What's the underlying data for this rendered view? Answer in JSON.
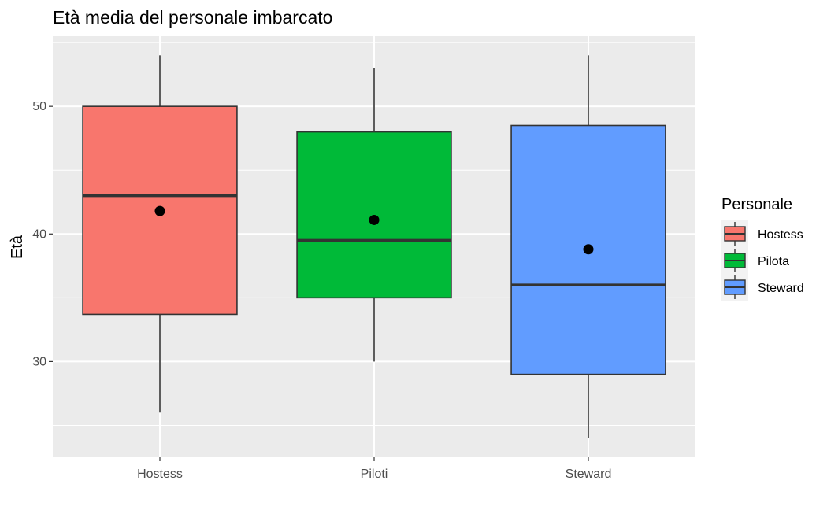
{
  "chart_data": {
    "type": "boxplot",
    "title": "Età media del personale imbarcato",
    "xlabel": "",
    "ylabel": "Età",
    "ylim": [
      22.5,
      55.5
    ],
    "yticks": [
      30,
      40,
      50
    ],
    "categories": [
      "Hostess",
      "Piloti",
      "Steward"
    ],
    "series": [
      {
        "category": "Hostess",
        "min": 26,
        "q1": 33.7,
        "median": 43,
        "q3": 50,
        "max": 54,
        "mean": 41.8,
        "color": "#F8766D"
      },
      {
        "category": "Piloti",
        "min": 30,
        "q1": 35,
        "median": 39.5,
        "q3": 48,
        "max": 53,
        "mean": 41.1,
        "color": "#00BA38"
      },
      {
        "category": "Steward",
        "min": 24,
        "q1": 29,
        "median": 36,
        "q3": 48.5,
        "max": 54,
        "mean": 38.8,
        "color": "#619CFF"
      }
    ],
    "grid": true,
    "legend": {
      "title": "Personale",
      "position": "right",
      "entries": [
        {
          "label": "Hostess",
          "color": "#F8766D"
        },
        {
          "label": "Pilota",
          "color": "#00BA38"
        },
        {
          "label": "Steward",
          "color": "#619CFF"
        }
      ]
    }
  }
}
